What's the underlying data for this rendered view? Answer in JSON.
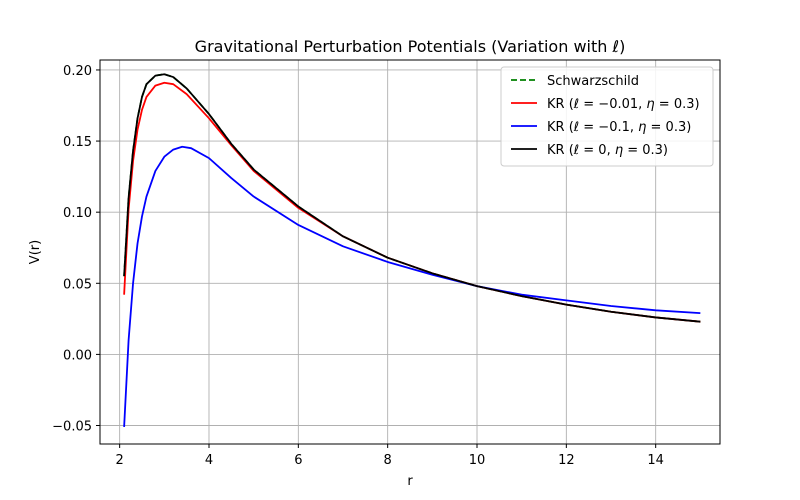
{
  "chart_data": {
    "type": "line",
    "title": "Gravitational Perturbation Potentials (Variation with ℓ)",
    "xlabel": "r",
    "ylabel": "V(r)",
    "xlim": [
      1.56,
      15.44
    ],
    "ylim": [
      -0.063,
      0.207
    ],
    "xticks": [
      2,
      4,
      6,
      8,
      10,
      12,
      14
    ],
    "xtick_labels": [
      "2",
      "4",
      "6",
      "8",
      "10",
      "12",
      "14"
    ],
    "yticks": [
      -0.05,
      0.0,
      0.05,
      0.1,
      0.15,
      0.2
    ],
    "ytick_labels": [
      "−0.05",
      "0.00",
      "0.05",
      "0.10",
      "0.15",
      "0.20"
    ],
    "grid": true,
    "legend_position": "top-right",
    "series": [
      {
        "name": "Schwarzschild",
        "color": "#008000",
        "dash": "dashed",
        "x": [
          2.1,
          2.2,
          2.3,
          2.4,
          2.5,
          2.6,
          2.8,
          3.0,
          3.2,
          3.5,
          4.0,
          4.5,
          5.0,
          6.0,
          7.0,
          8.0,
          9.0,
          10.0,
          11.0,
          12.0,
          13.0,
          14.0,
          15.0
        ],
        "y": [
          0.055,
          0.11,
          0.143,
          0.166,
          0.181,
          0.19,
          0.196,
          0.197,
          0.195,
          0.187,
          0.169,
          0.148,
          0.13,
          0.104,
          0.083,
          0.068,
          0.057,
          0.048,
          0.041,
          0.035,
          0.03,
          0.026,
          0.023
        ]
      },
      {
        "name": "KR (ℓ = −0.01, η = 0.3)",
        "legend_main": "KR (",
        "legend_mid1": " = −0.01, ",
        "legend_mid2": " = 0.3)",
        "color": "#ff0000",
        "dash": "solid",
        "x": [
          2.1,
          2.2,
          2.3,
          2.4,
          2.5,
          2.6,
          2.8,
          3.0,
          3.2,
          3.5,
          4.0,
          4.5,
          5.0,
          6.0,
          7.0,
          8.0,
          9.0,
          10.0,
          11.0,
          12.0,
          13.0,
          14.0,
          15.0
        ],
        "y": [
          0.042,
          0.102,
          0.136,
          0.158,
          0.172,
          0.181,
          0.189,
          0.191,
          0.19,
          0.183,
          0.166,
          0.147,
          0.129,
          0.103,
          0.083,
          0.068,
          0.057,
          0.048,
          0.041,
          0.035,
          0.03,
          0.026,
          0.023
        ]
      },
      {
        "name": "KR (ℓ = −0.1, η = 0.3)",
        "legend_main": "KR (",
        "legend_mid1": " = −0.1, ",
        "legend_mid2": " = 0.3)",
        "color": "#0000ff",
        "dash": "solid",
        "x": [
          2.1,
          2.2,
          2.3,
          2.4,
          2.5,
          2.6,
          2.8,
          3.0,
          3.2,
          3.4,
          3.6,
          4.0,
          4.5,
          5.0,
          6.0,
          7.0,
          8.0,
          9.0,
          10.0,
          11.0,
          12.0,
          13.0,
          14.0,
          15.0
        ],
        "y": [
          -0.051,
          0.01,
          0.05,
          0.078,
          0.097,
          0.111,
          0.129,
          0.139,
          0.144,
          0.146,
          0.145,
          0.138,
          0.124,
          0.111,
          0.091,
          0.076,
          0.065,
          0.056,
          0.048,
          0.042,
          0.038,
          0.034,
          0.031,
          0.029
        ]
      },
      {
        "name": "KR (ℓ = 0, η = 0.3)",
        "legend_main": "KR (",
        "legend_mid1": " = 0, ",
        "legend_mid2": " = 0.3)",
        "color": "#000000",
        "dash": "solid",
        "x": [
          2.1,
          2.2,
          2.3,
          2.4,
          2.5,
          2.6,
          2.8,
          3.0,
          3.2,
          3.5,
          4.0,
          4.5,
          5.0,
          6.0,
          7.0,
          8.0,
          9.0,
          10.0,
          11.0,
          12.0,
          13.0,
          14.0,
          15.0
        ],
        "y": [
          0.055,
          0.11,
          0.143,
          0.166,
          0.181,
          0.19,
          0.196,
          0.197,
          0.195,
          0.187,
          0.169,
          0.148,
          0.13,
          0.104,
          0.083,
          0.068,
          0.057,
          0.048,
          0.041,
          0.035,
          0.03,
          0.026,
          0.023
        ]
      }
    ],
    "legend_symbols": {
      "ell": "ℓ",
      "eta": "η"
    }
  }
}
